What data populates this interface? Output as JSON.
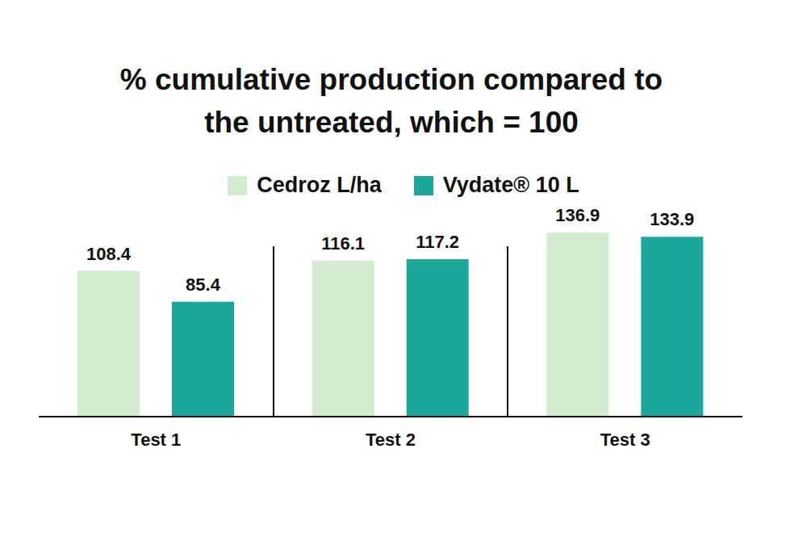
{
  "chart_data": {
    "type": "bar",
    "title": "% cumulative production compared to the untreated, which = 100",
    "categories": [
      "Test 1",
      "Test 2",
      "Test 3"
    ],
    "series": [
      {
        "name": "Cedroz L/ha",
        "color": "#d3ecd0",
        "values": [
          108.4,
          116.1,
          136.9
        ]
      },
      {
        "name": "Vydate® 10 L",
        "color": "#1ba89b",
        "values": [
          85.4,
          117.2,
          133.9
        ]
      }
    ],
    "ylim": [
      0,
      140
    ],
    "data_labels": true,
    "tick_labels": "x"
  }
}
